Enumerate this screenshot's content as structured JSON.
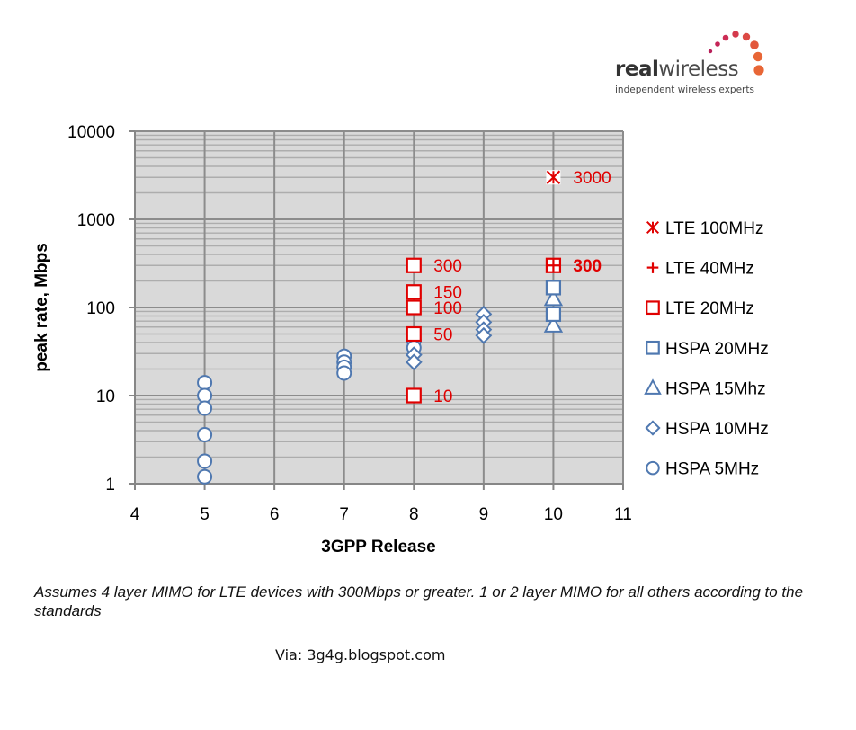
{
  "logo": {
    "brand_bold": "real",
    "brand_light": "wireless",
    "tagline": "independent wireless experts",
    "dot_colors": [
      "#b8205a",
      "#c42557",
      "#cc2d55",
      "#d43a4c",
      "#dc4a45",
      "#e2573c",
      "#e86636"
    ]
  },
  "footnote": "Assumes 4 layer MIMO for LTE devices with 300Mbps or greater. 1 or 2 layer MIMO for all others according to the standards",
  "via": "Via: 3g4g.blogspot.com",
  "colors": {
    "lte": "#e00000",
    "hspa": "#4f78b0",
    "plot_bg": "#d9d9d9",
    "grid_major": "#8c8c8c",
    "grid_minor": "#adadad"
  },
  "chart_data": {
    "type": "scatter",
    "title": "",
    "xlabel": "3GPP Release",
    "ylabel": "peak rate, Mbps",
    "xlim": [
      4,
      11
    ],
    "ylim": [
      1,
      10000
    ],
    "yscale": "log",
    "x_ticks": [
      "4",
      "5",
      "6",
      "7",
      "8",
      "9",
      "10",
      "11"
    ],
    "y_ticks": [
      "1",
      "10",
      "100",
      "1000",
      "10000"
    ],
    "grid": true,
    "legend_position": "right",
    "series": [
      {
        "name": "LTE 100MHz",
        "marker": "asterisk",
        "color": "#e00000",
        "points": [
          [
            10,
            3000
          ]
        ]
      },
      {
        "name": "LTE 40MHz",
        "marker": "plus",
        "color": "#e00000",
        "points": [
          [
            10,
            300
          ]
        ]
      },
      {
        "name": "LTE 20MHz",
        "marker": "square",
        "color": "#e00000",
        "points": [
          [
            8,
            300
          ],
          [
            8,
            150
          ],
          [
            8,
            100
          ],
          [
            8,
            50
          ],
          [
            8,
            10
          ],
          [
            10,
            300
          ]
        ]
      },
      {
        "name": "HSPA 20MHz",
        "marker": "square",
        "color": "#4f78b0",
        "points": [
          [
            10,
            168
          ],
          [
            10,
            84
          ]
        ]
      },
      {
        "name": "HSPA 15Mhz",
        "marker": "triangle",
        "color": "#4f78b0",
        "points": [
          [
            10,
            126
          ],
          [
            10,
            63
          ]
        ]
      },
      {
        "name": "HSPA 10MHz",
        "marker": "diamond",
        "color": "#4f78b0",
        "points": [
          [
            8,
            29
          ],
          [
            8,
            24
          ],
          [
            9,
            84
          ],
          [
            9,
            68
          ],
          [
            9,
            56
          ],
          [
            9,
            48
          ]
        ]
      },
      {
        "name": "HSPA 5MHz",
        "marker": "circle",
        "color": "#4f78b0",
        "points": [
          [
            5,
            14
          ],
          [
            5,
            10
          ],
          [
            5,
            7.2
          ],
          [
            5,
            3.6
          ],
          [
            5,
            1.8
          ],
          [
            5,
            1.2
          ],
          [
            7,
            28
          ],
          [
            7,
            24
          ],
          [
            7,
            21
          ],
          [
            7,
            18
          ],
          [
            8,
            42
          ],
          [
            8,
            35
          ]
        ]
      }
    ],
    "annotations": [
      {
        "x": 8,
        "y": 300,
        "text": "300",
        "bold": false
      },
      {
        "x": 8,
        "y": 150,
        "text": "150",
        "bold": false
      },
      {
        "x": 8,
        "y": 100,
        "text": "100",
        "bold": false
      },
      {
        "x": 8,
        "y": 50,
        "text": "50",
        "bold": false
      },
      {
        "x": 8,
        "y": 10,
        "text": "10",
        "bold": false
      },
      {
        "x": 10,
        "y": 3000,
        "text": "3000",
        "bold": false
      },
      {
        "x": 10,
        "y": 300,
        "text": "300",
        "bold": true
      }
    ]
  }
}
